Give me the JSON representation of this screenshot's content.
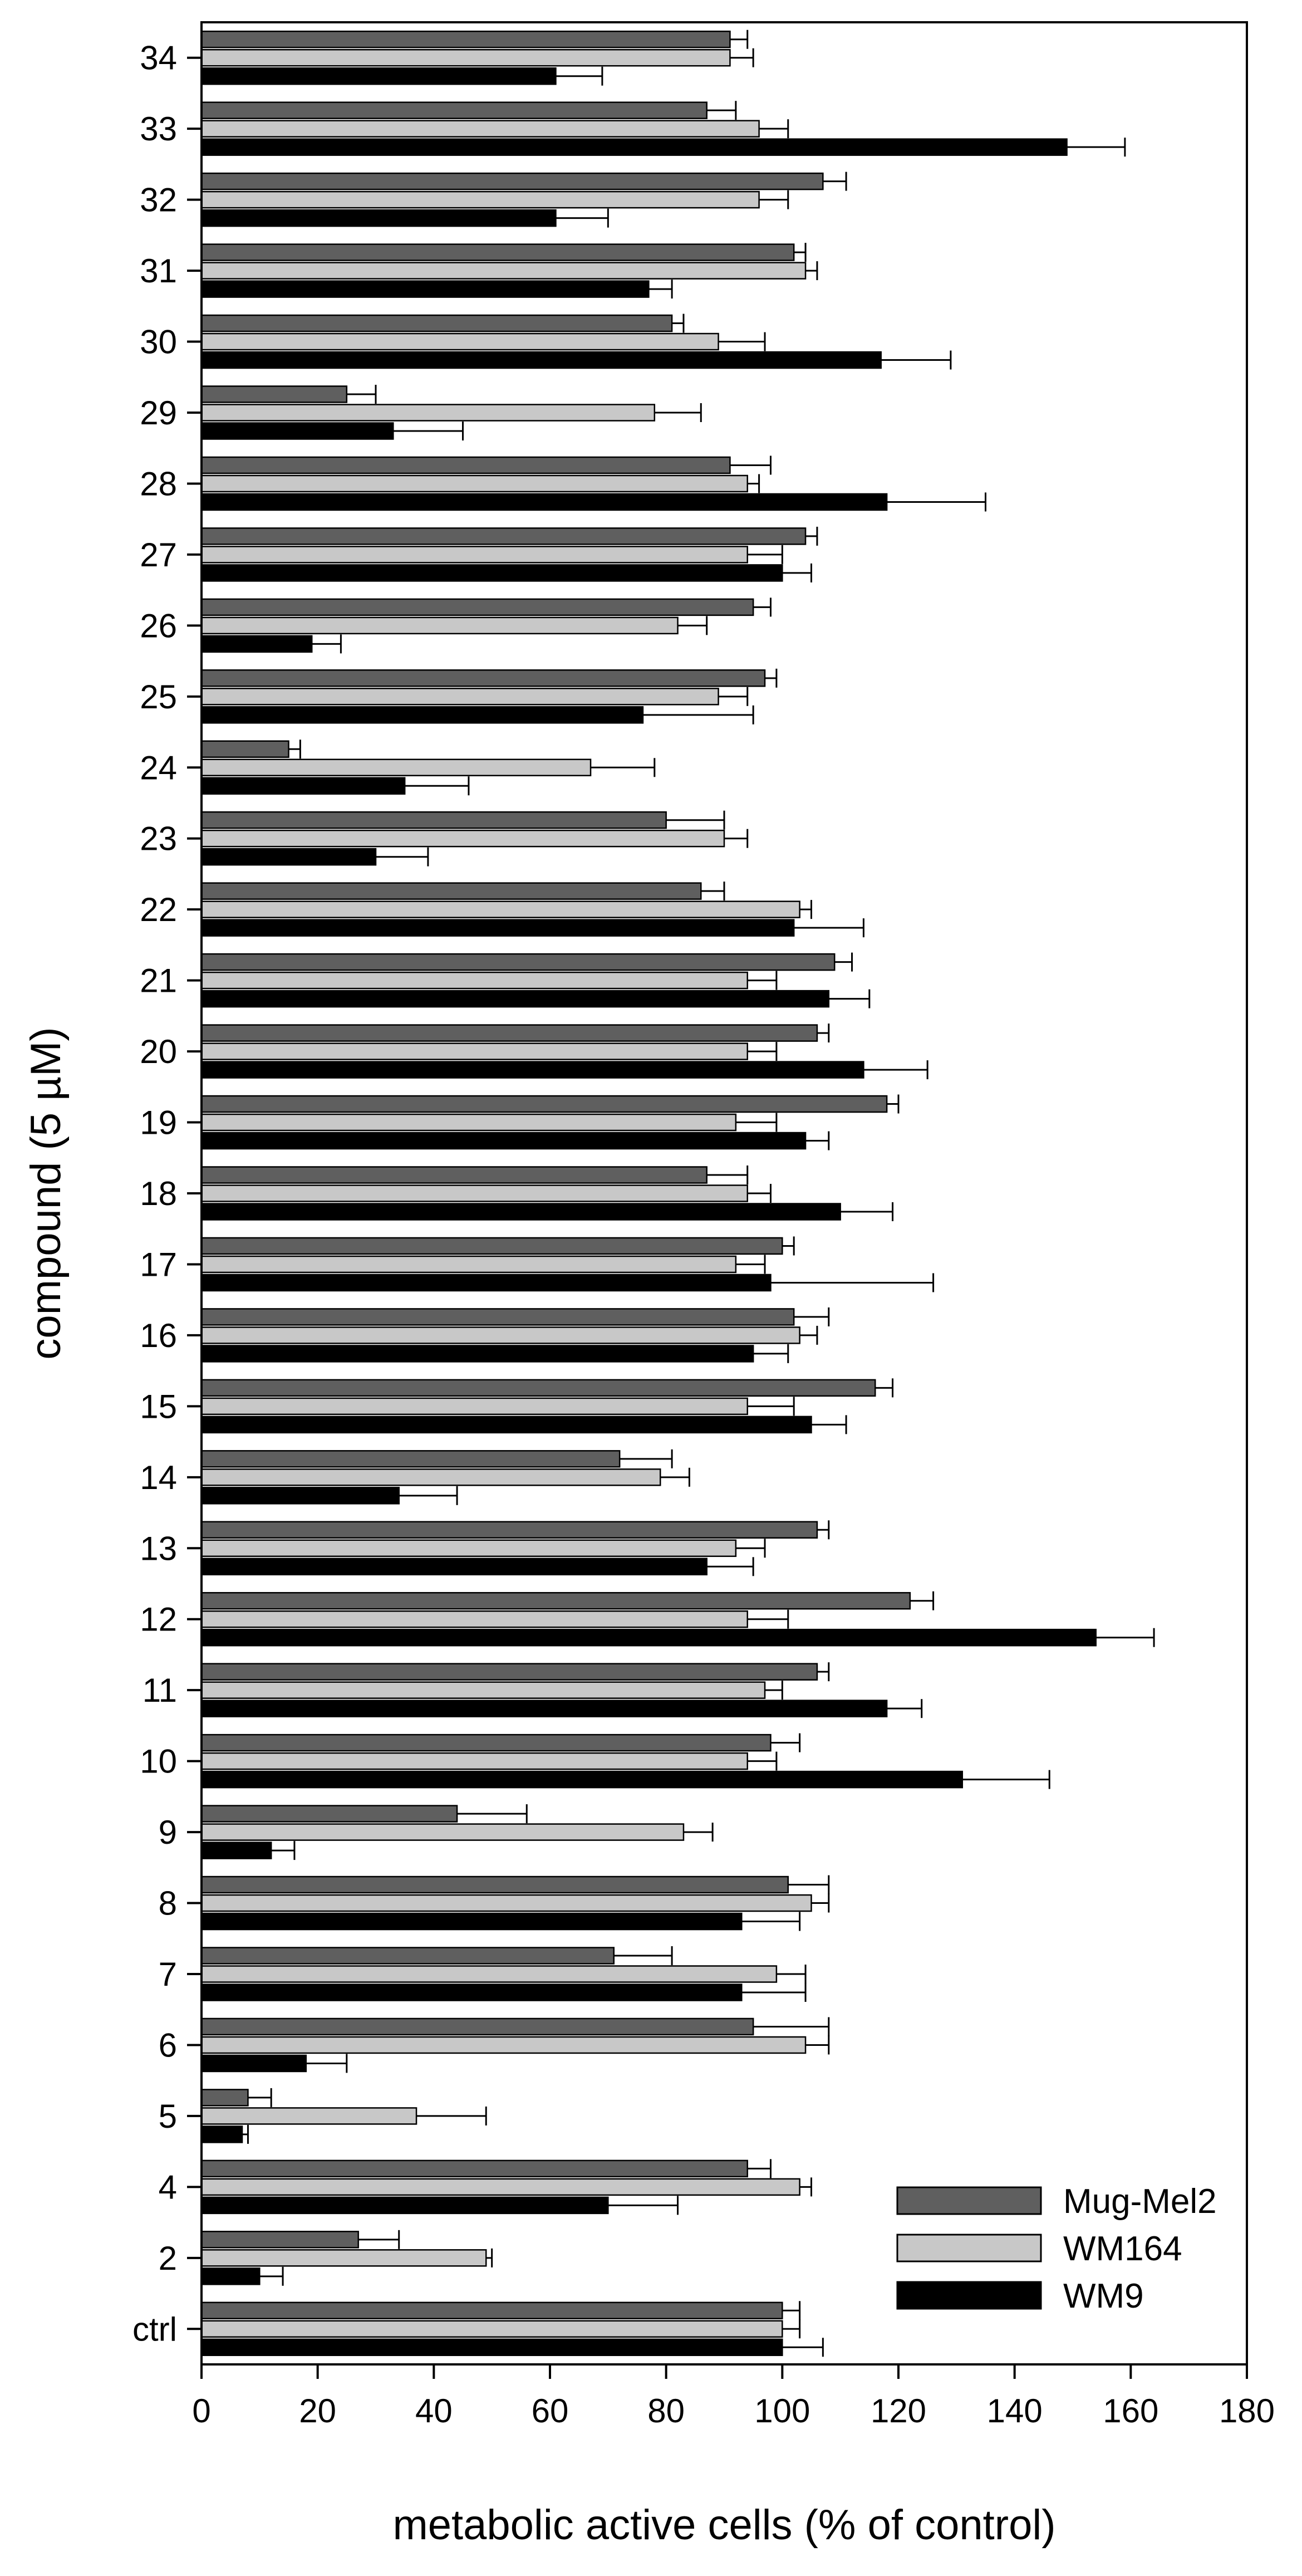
{
  "chart_data": {
    "type": "bar",
    "orientation": "horizontal",
    "title": "",
    "xlabel": "metabolic active cells (% of control)",
    "ylabel": "compound (5 µM)",
    "xlim": [
      0,
      180
    ],
    "xticks": [
      0,
      20,
      40,
      60,
      80,
      100,
      120,
      140,
      160,
      180
    ],
    "grid": false,
    "legend_position": "bottom-right",
    "categories": [
      "ctrl",
      "2",
      "4",
      "5",
      "6",
      "7",
      "8",
      "9",
      "10",
      "11",
      "12",
      "13",
      "14",
      "15",
      "16",
      "17",
      "18",
      "19",
      "20",
      "21",
      "22",
      "23",
      "24",
      "25",
      "26",
      "27",
      "28",
      "29",
      "30",
      "31",
      "32",
      "33",
      "34"
    ],
    "series": [
      {
        "name": "Mug-Mel2",
        "color": "#5f5f5f",
        "values": [
          100,
          27,
          94,
          8,
          95,
          71,
          101,
          44,
          98,
          106,
          122,
          106,
          72,
          116,
          102,
          100,
          87,
          118,
          106,
          109,
          86,
          80,
          15,
          97,
          95,
          104,
          91,
          25,
          81,
          102,
          107,
          87,
          91
        ],
        "errors": [
          3,
          7,
          4,
          4,
          13,
          10,
          7,
          12,
          5,
          2,
          4,
          2,
          9,
          3,
          6,
          2,
          7,
          2,
          2,
          3,
          4,
          10,
          2,
          2,
          3,
          2,
          7,
          5,
          2,
          2,
          4,
          5,
          3
        ]
      },
      {
        "name": "WM164",
        "color": "#c8c8c8",
        "values": [
          100,
          49,
          103,
          37,
          104,
          99,
          105,
          83,
          94,
          97,
          94,
          92,
          79,
          94,
          103,
          92,
          94,
          92,
          94,
          94,
          103,
          90,
          67,
          89,
          82,
          94,
          94,
          78,
          89,
          104,
          96,
          96,
          91
        ],
        "errors": [
          3,
          1,
          2,
          12,
          4,
          5,
          3,
          5,
          5,
          3,
          7,
          5,
          5,
          8,
          3,
          5,
          4,
          7,
          5,
          5,
          2,
          4,
          11,
          5,
          5,
          6,
          2,
          8,
          8,
          2,
          5,
          5,
          4
        ]
      },
      {
        "name": "WM9",
        "color": "#000000",
        "values": [
          100,
          10,
          70,
          7,
          18,
          93,
          93,
          12,
          131,
          118,
          154,
          87,
          34,
          105,
          95,
          98,
          110,
          104,
          114,
          108,
          102,
          30,
          35,
          76,
          19,
          100,
          118,
          33,
          117,
          77,
          61,
          149,
          61
        ],
        "errors": [
          7,
          4,
          12,
          1,
          7,
          11,
          10,
          4,
          15,
          6,
          10,
          8,
          10,
          6,
          6,
          28,
          9,
          4,
          11,
          7,
          12,
          9,
          11,
          19,
          5,
          5,
          17,
          12,
          12,
          4,
          9,
          10,
          8
        ]
      }
    ]
  }
}
